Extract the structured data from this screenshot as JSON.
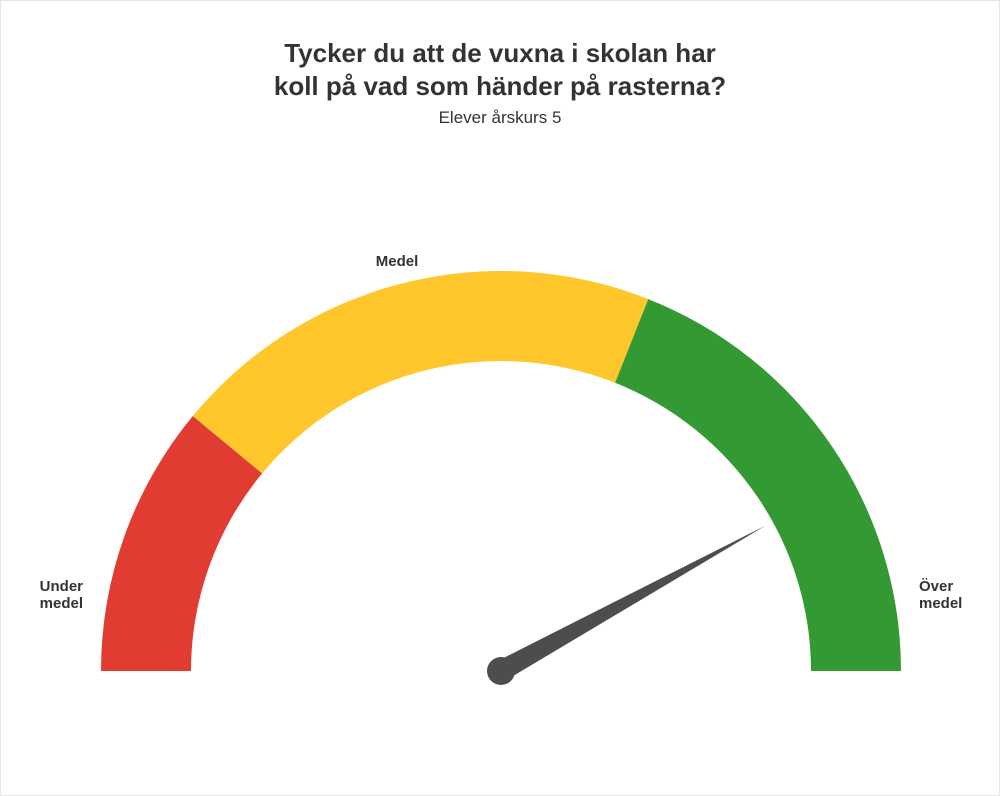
{
  "title_line1": "Tycker du att de vuxna i skolan har",
  "title_line2": "koll på vad som händer på rasterna?",
  "subtitle": "Elever årskurs 5",
  "title_fontsize": 26,
  "subtitle_fontsize": 17,
  "title_color": "#333333",
  "background_color": "#ffffff",
  "border_color": "#e5e5e5",
  "gauge": {
    "type": "gauge",
    "min": 0,
    "max": 100,
    "value": 84,
    "needle_color": "#4d4d4d",
    "needle_base_radius": 14,
    "outer_radius": 400,
    "inner_radius": 310,
    "label_fontsize": 15,
    "segments": [
      {
        "from": 0,
        "to": 22,
        "color": "#e03c32",
        "label": "Under medel",
        "label_pos": "start-outside"
      },
      {
        "from": 22,
        "to": 62,
        "color": "#ffc72c",
        "label": "Medel",
        "label_pos": "top"
      },
      {
        "from": 62,
        "to": 100,
        "color": "#339933",
        "label": "Över medel",
        "label_pos": "end-outside"
      }
    ]
  }
}
